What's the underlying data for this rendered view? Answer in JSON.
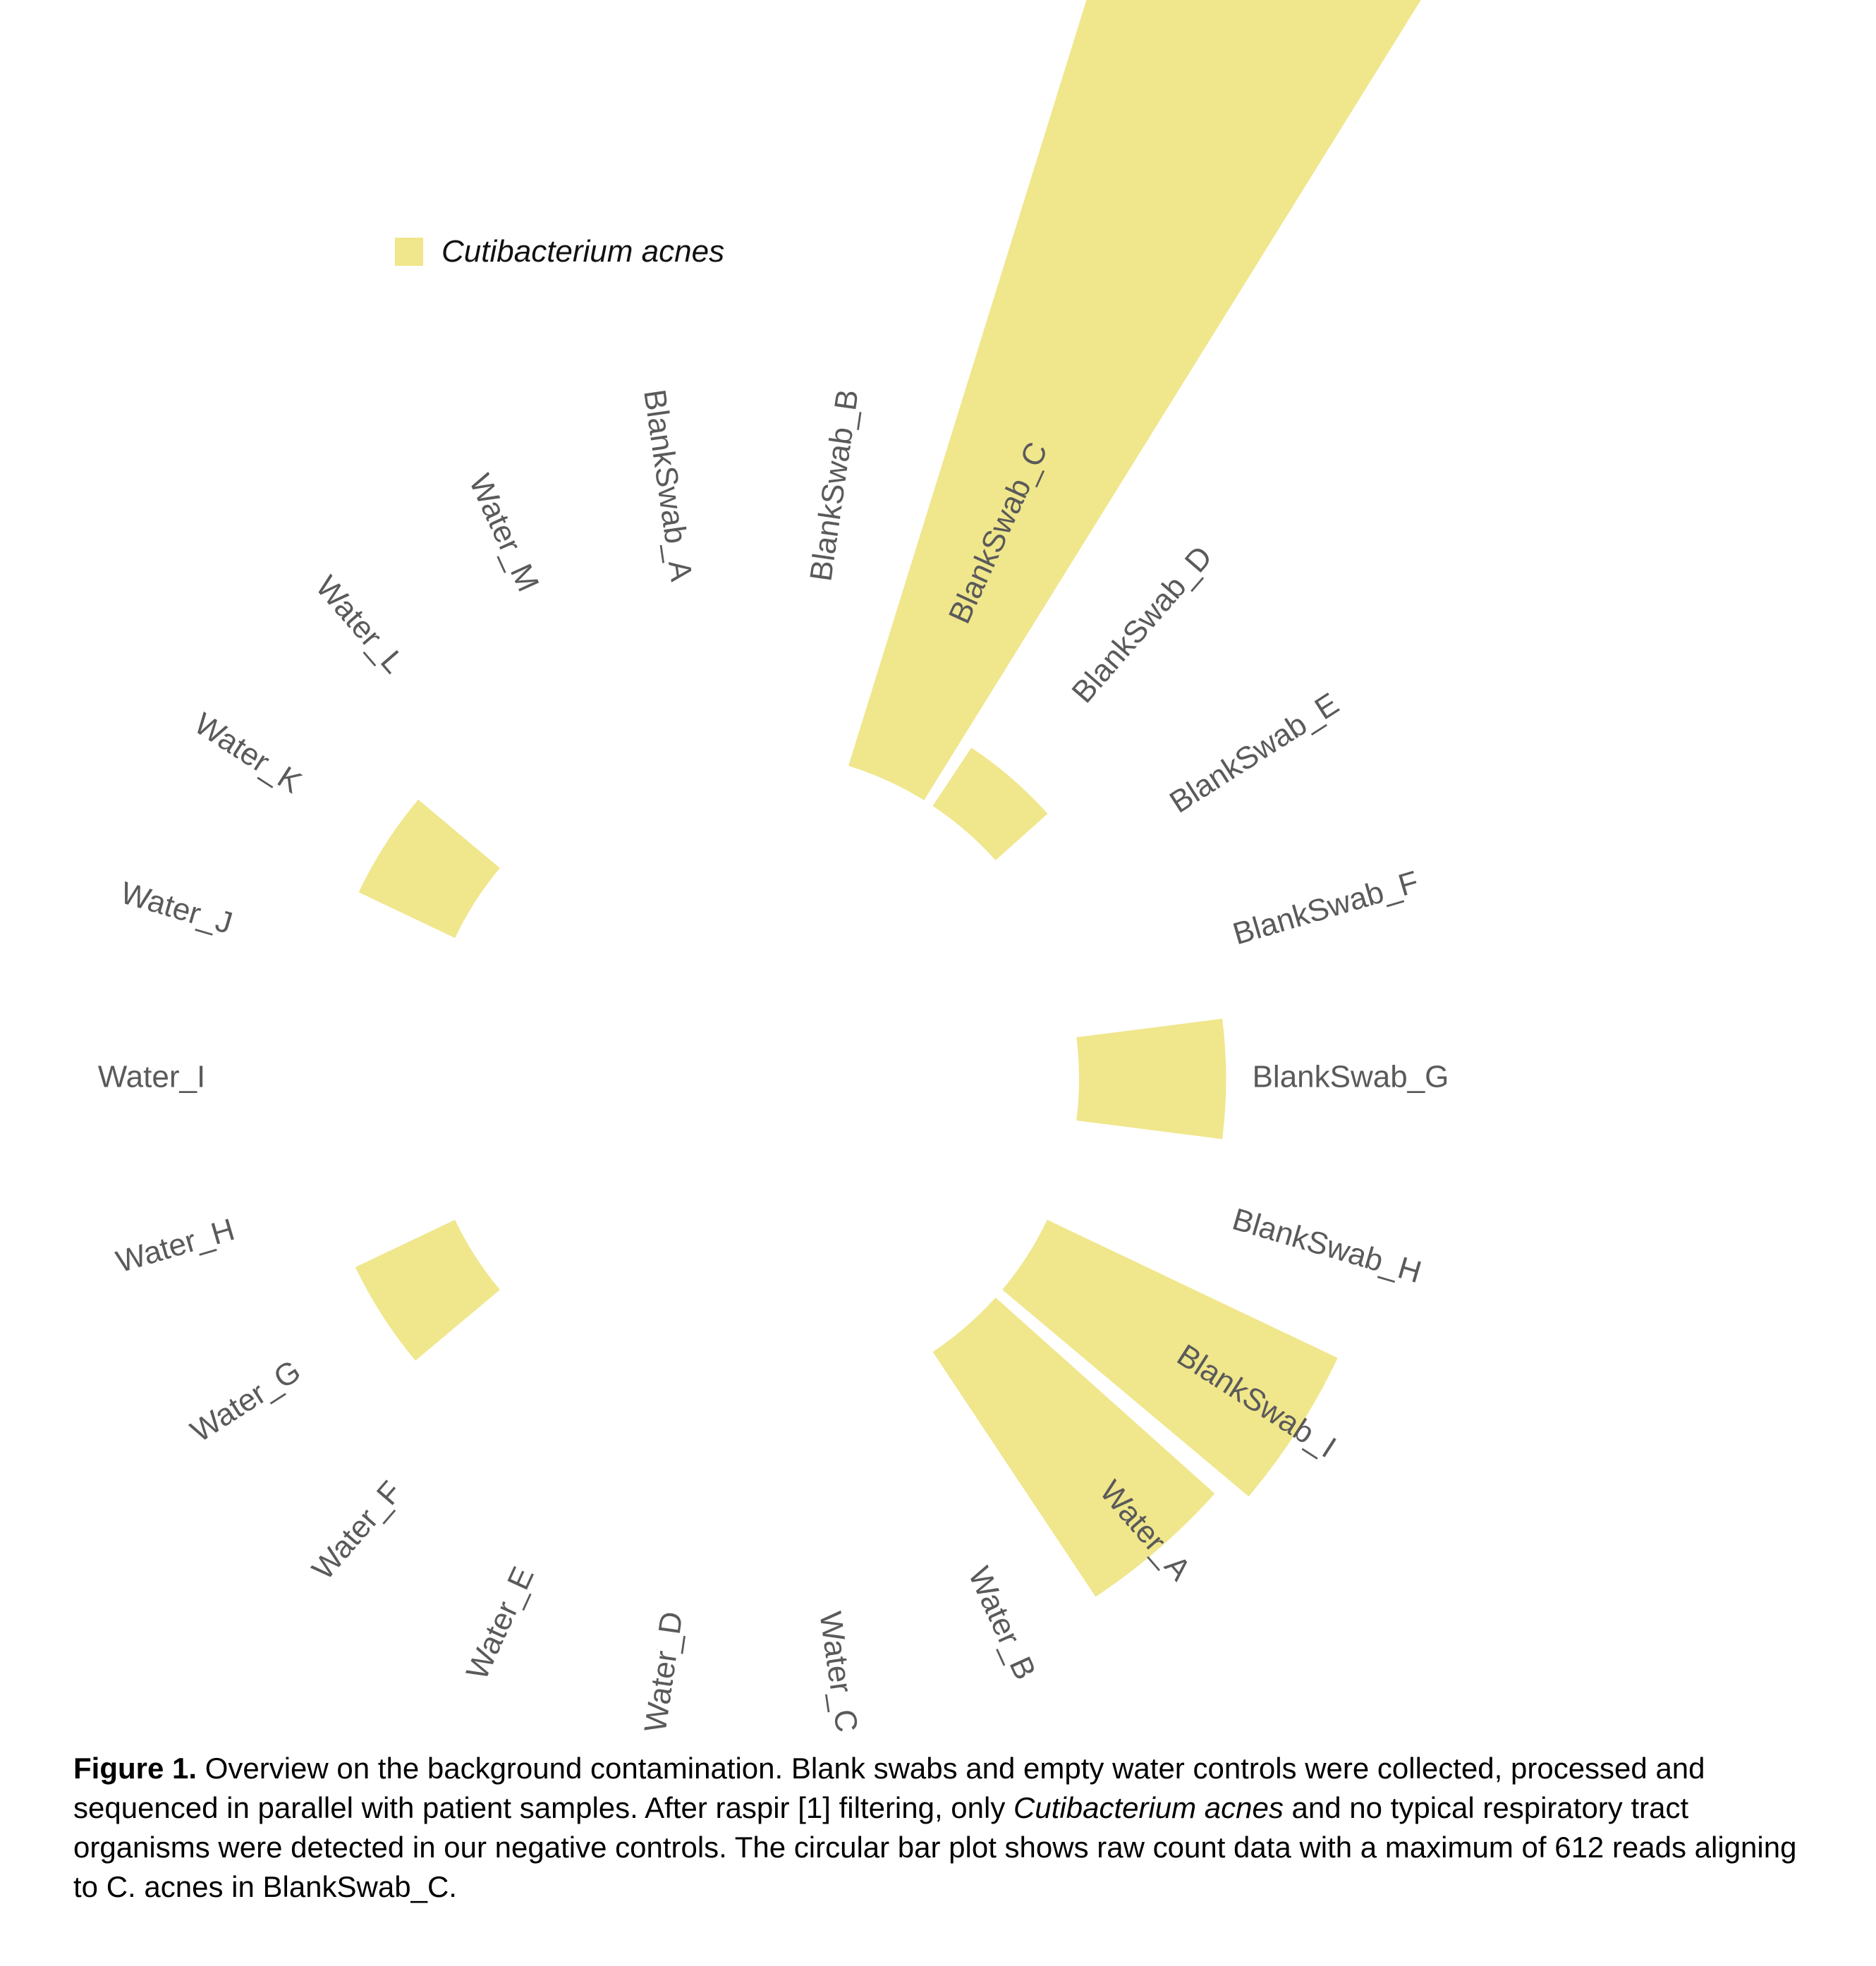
{
  "legend": {
    "label": "Cutibacterium acnes"
  },
  "colors": {
    "bar": "#f0e68c",
    "label_text": "#5a5a5a"
  },
  "chart_data": {
    "type": "bar",
    "layout": "circular",
    "title": "",
    "xlabel": "",
    "ylabel": "",
    "ylim": [
      0,
      612
    ],
    "grid": false,
    "legend_placement": "top-left",
    "categories": [
      "BlankSwab_A",
      "BlankSwab_B",
      "BlankSwab_C",
      "BlankSwab_D",
      "BlankSwab_E",
      "BlankSwab_F",
      "BlankSwab_G",
      "BlankSwab_H",
      "BlankSwab_I",
      "Water_A",
      "Water_B",
      "Water_C",
      "Water_D",
      "Water_E",
      "Water_F",
      "Water_G",
      "Water_H",
      "Water_I",
      "Water_J",
      "Water_K",
      "Water_L",
      "Water_M"
    ],
    "series": [
      {
        "name": "Cutibacterium acnes",
        "values": [
          0,
          0,
          612,
          38,
          0,
          0,
          80,
          0,
          175,
          160,
          0,
          0,
          0,
          0,
          0,
          60,
          0,
          0,
          0,
          58,
          0,
          0
        ]
      }
    ]
  },
  "caption": {
    "label": "Figure 1.",
    "part1": " Overview on the background contamination. Blank swabs and empty water controls were collected, processed and sequenced in parallel with patient samples. After raspir [1] filtering, only ",
    "organism": "Cutibacterium acnes",
    "part2": " and no typical respiratory tract organisms were detected in our  negative controls. The circular bar plot shows raw count data with a maximum of 612 reads aligning to C. acnes in BlankSwab_C."
  }
}
